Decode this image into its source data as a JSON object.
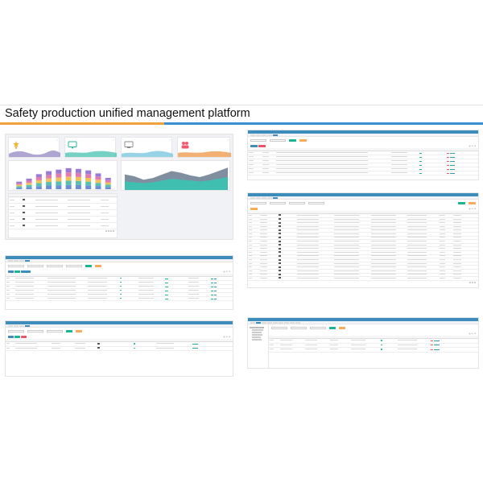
{
  "page_title": "Safety production unified management platform",
  "colors": {
    "header_blue": "#3c8dbc",
    "green": "#1ab394",
    "orange": "#f8ac59",
    "red": "#ed5565",
    "rule_orange": "#f2a23a",
    "rule_blue": "#3a8fd0"
  },
  "icons": [
    "trophy-icon",
    "monitor-icon",
    "screen-icon",
    "people-icon"
  ],
  "screens": {
    "list_a": {
      "rows": 6
    },
    "list_b": {
      "rows": 18
    },
    "list_c": {
      "rows": 6
    },
    "list_d": {
      "rows": 2
    },
    "list_e": {
      "rows": 3
    },
    "dash_table": {
      "rows": 5
    }
  },
  "dashboard": {
    "bar_chart": {
      "categories": 10,
      "values": [
        10,
        14,
        20,
        24,
        26,
        28,
        27,
        25,
        21,
        15
      ]
    },
    "area_chart": {
      "series_a": [
        18,
        16,
        12,
        14,
        18,
        22,
        20,
        17,
        15,
        18,
        22,
        26
      ],
      "series_b": [
        10,
        9,
        8,
        9,
        11,
        13,
        12,
        11,
        10,
        11,
        13,
        15
      ]
    }
  }
}
